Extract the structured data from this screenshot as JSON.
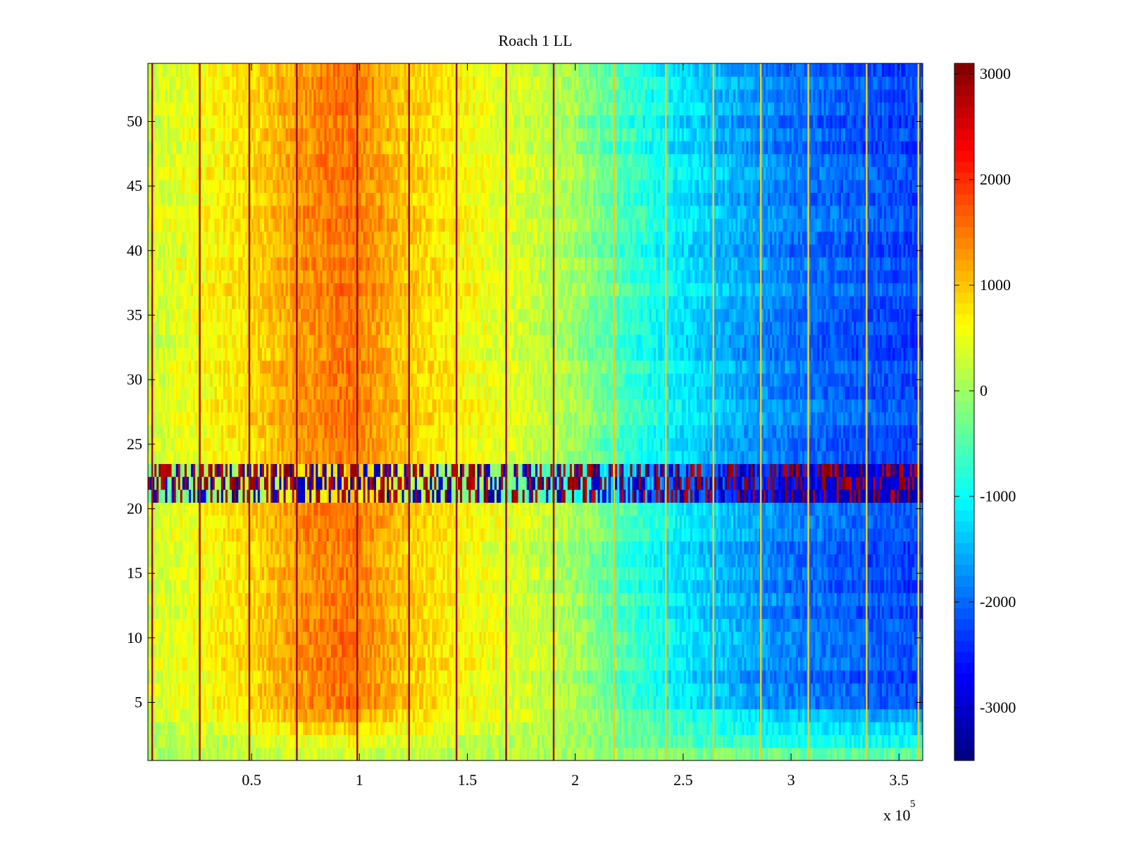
{
  "chart_data": {
    "type": "heatmap",
    "title": "Roach 1 LL",
    "xlabel": "",
    "ylabel": "",
    "x_exponent_label": "x 10",
    "x_exponent_power": "5",
    "xlim": [
      0.02,
      3.61
    ],
    "ylim": [
      0.5,
      54.5
    ],
    "x_ticks": [
      0.5,
      1,
      1.5,
      2,
      2.5,
      3,
      3.5
    ],
    "x_tick_labels": [
      "0.5",
      "1",
      "1.5",
      "2",
      "2.5",
      "3",
      "3.5"
    ],
    "y_ticks": [
      5,
      10,
      15,
      20,
      25,
      30,
      35,
      40,
      45,
      50
    ],
    "y_tick_labels": [
      "5",
      "10",
      "15",
      "20",
      "25",
      "30",
      "35",
      "40",
      "45",
      "50"
    ],
    "rows": 54,
    "colormap": "jet",
    "color_range": [
      -3500,
      3100
    ],
    "colorbar_ticks": [
      3000,
      2000,
      1000,
      0,
      -1000,
      -2000,
      -3000
    ],
    "colorbar_tick_labels": [
      "3000",
      "2000",
      "1000",
      "0",
      "-1000",
      "-2000",
      "-3000"
    ],
    "column_trend": [
      {
        "x": 0.02,
        "value": 300
      },
      {
        "x": 0.25,
        "value": 550
      },
      {
        "x": 0.5,
        "value": 850
      },
      {
        "x": 0.75,
        "value": 1350
      },
      {
        "x": 0.95,
        "value": 1550
      },
      {
        "x": 1.2,
        "value": 1000
      },
      {
        "x": 1.5,
        "value": 600
      },
      {
        "x": 1.75,
        "value": 350
      },
      {
        "x": 2.0,
        "value": 0
      },
      {
        "x": 2.2,
        "value": -550
      },
      {
        "x": 2.45,
        "value": -1100
      },
      {
        "x": 2.7,
        "value": -1500
      },
      {
        "x": 3.0,
        "value": -1900
      },
      {
        "x": 3.3,
        "value": -2100
      },
      {
        "x": 3.61,
        "value": -2250
      }
    ],
    "noisy_band_rows": [
      21,
      23
    ],
    "vertical_line_positions": [
      0.04,
      0.26,
      0.49,
      0.71,
      0.99,
      1.23,
      1.45,
      1.68,
      1.9,
      2.18,
      2.42,
      2.64,
      2.86,
      3.08,
      3.35,
      3.59
    ]
  }
}
